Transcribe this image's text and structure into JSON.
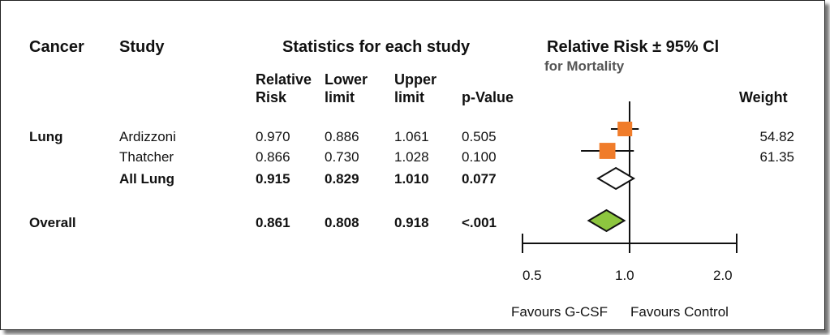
{
  "headers": {
    "cancer": "Cancer",
    "study": "Study",
    "stats": "Statistics for each study",
    "rr_ci": "Relative Risk  ± 95% Cl",
    "for_mortality": "for Mortality",
    "rr_l1": "Relative",
    "rr_l2": "Risk",
    "lower_l1": "Lower",
    "lower_l2": "limit",
    "upper_l1": "Upper",
    "upper_l2": "limit",
    "pvalue": "p-Value",
    "weight": "Weight"
  },
  "chart_data": {
    "type": "forest",
    "rows": [
      {
        "cancer": "Lung",
        "study": "Ardizzoni",
        "rr": "0.970",
        "lower": "0.886",
        "upper": "1.061",
        "p": "0.505",
        "weight": "54.82",
        "marker": "square",
        "rr_v": 0.97,
        "lo_v": 0.886,
        "hi_v": 1.061,
        "size": 1.0
      },
      {
        "cancer": "",
        "study": "Thatcher",
        "rr": "0.866",
        "lower": "0.730",
        "upper": "1.028",
        "p": "0.100",
        "weight": "61.35",
        "marker": "square",
        "rr_v": 0.866,
        "lo_v": 0.73,
        "hi_v": 1.028,
        "size": 1.1
      },
      {
        "cancer": "",
        "study": "All Lung",
        "rr": "0.915",
        "lower": "0.829",
        "upper": "1.010",
        "p": "0.077",
        "weight": "",
        "marker": "diamond-white",
        "rr_v": 0.915,
        "lo_v": 0.829,
        "hi_v": 1.01,
        "bold": true
      },
      {
        "cancer": "Overall",
        "study": "",
        "rr": "0.861",
        "lower": "0.808",
        "upper": "0.918",
        "p": "<.001",
        "weight": "",
        "marker": "diamond-green",
        "rr_v": 0.861,
        "lo_v": 0.808,
        "hi_v": 0.918,
        "bold": true
      }
    ],
    "x_ticks": [
      "0.5",
      "1.0",
      "2.0"
    ],
    "x_tick_values": [
      0.5,
      1.0,
      2.0
    ],
    "x_scale": "log",
    "reference_line": 1.0,
    "label_left": "Favours G-CSF",
    "label_right": "Favours Control",
    "colors": {
      "square": "#F07C2A",
      "overall": "#8DC63F",
      "line": "#111111"
    }
  }
}
